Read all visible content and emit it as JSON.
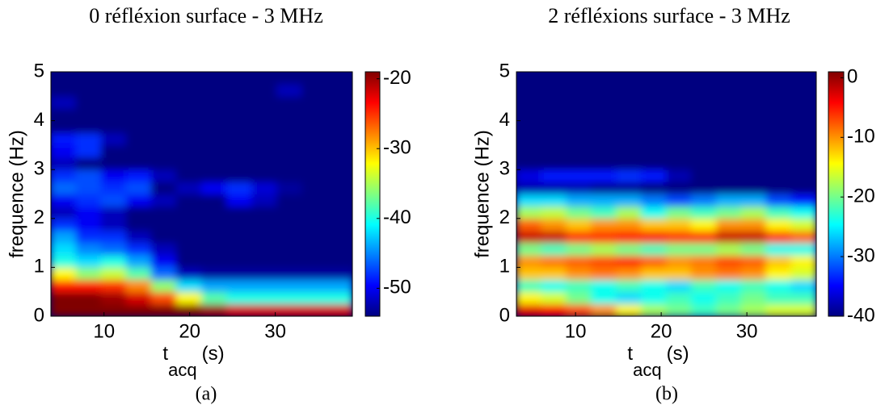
{
  "chart_data": [
    {
      "type": "heatmap",
      "title": "0 réfléxion surface - 3 MHz",
      "caption": "(a)",
      "ylabel": "frequence (Hz)",
      "xlabel": "t",
      "xlabel_sub": "acq",
      "xlabel_unit": "(s)",
      "xlim": [
        3.8,
        39
      ],
      "xticks": [
        10,
        20,
        30
      ],
      "ylim": [
        0,
        5
      ],
      "yticks": [
        0,
        1,
        2,
        3,
        4,
        5
      ],
      "clim": [
        -54,
        -19
      ],
      "cticks": [
        -50,
        -40,
        -30,
        -20
      ],
      "colormap": "jet",
      "x": [
        5.27,
        8.2,
        11.13,
        14.07,
        17,
        19.93,
        22.87,
        25.8,
        28.73,
        31.67,
        34.6,
        37.53
      ],
      "y": [
        0.125,
        0.375,
        0.625,
        0.875,
        1.125,
        1.375,
        1.625,
        1.875,
        2.125,
        2.375,
        2.625,
        2.875,
        3.125,
        3.375,
        3.625,
        3.875,
        4.125,
        4.375,
        4.625,
        4.875
      ],
      "z": [
        [
          -19,
          -19,
          -19,
          -19,
          -19,
          -19,
          -20,
          -22,
          -22,
          -22,
          -22,
          -22
        ],
        [
          -19,
          -19,
          -20,
          -22,
          -26,
          -32,
          -38,
          -40,
          -40,
          -40,
          -40,
          -40
        ],
        [
          -24,
          -24,
          -25,
          -28,
          -36,
          -42,
          -44,
          -44,
          -44,
          -44,
          -44,
          -44
        ],
        [
          -32,
          -36,
          -34,
          -38,
          -46,
          -52,
          -53,
          -53,
          -53,
          -53,
          -53,
          -53
        ],
        [
          -40,
          -42,
          -40,
          -44,
          -50,
          -54,
          -54,
          -54,
          -54,
          -54,
          -54,
          -54
        ],
        [
          -42,
          -45,
          -46,
          -48,
          -52,
          -54,
          -54,
          -54,
          -54,
          -54,
          -54,
          -54
        ],
        [
          -44,
          -48,
          -48,
          -52,
          -54,
          -54,
          -54,
          -54,
          -54,
          -54,
          -54,
          -54
        ],
        [
          -48,
          -50,
          -52,
          -54,
          -54,
          -54,
          -54,
          -54,
          -54,
          -54,
          -54,
          -54
        ],
        [
          -52,
          -50,
          -52,
          -54,
          -54,
          -54,
          -54,
          -54,
          -54,
          -54,
          -54,
          -54
        ],
        [
          -50,
          -48,
          -47,
          -50,
          -52,
          -54,
          -54,
          -50,
          -52,
          -54,
          -54,
          -54
        ],
        [
          -46,
          -47,
          -48,
          -47,
          -54,
          -52,
          -50,
          -48,
          -51,
          -53,
          -54,
          -54
        ],
        [
          -48,
          -47,
          -50,
          -49,
          -52,
          -54,
          -54,
          -54,
          -54,
          -54,
          -54,
          -54
        ],
        [
          -52,
          -54,
          -54,
          -54,
          -54,
          -54,
          -54,
          -54,
          -54,
          -54,
          -54,
          -54
        ],
        [
          -50,
          -48,
          -54,
          -54,
          -54,
          -54,
          -54,
          -54,
          -54,
          -54,
          -54,
          -54
        ],
        [
          -49,
          -48,
          -52,
          -54,
          -54,
          -54,
          -54,
          -54,
          -54,
          -54,
          -54,
          -54
        ],
        [
          -54,
          -54,
          -54,
          -54,
          -54,
          -54,
          -54,
          -54,
          -54,
          -54,
          -54,
          -54
        ],
        [
          -54,
          -54,
          -54,
          -54,
          -54,
          -54,
          -54,
          -54,
          -54,
          -54,
          -54,
          -54
        ],
        [
          -52,
          -54,
          -54,
          -54,
          -54,
          -54,
          -54,
          -54,
          -54,
          -54,
          -54,
          -54
        ],
        [
          -54,
          -54,
          -54,
          -54,
          -54,
          -54,
          -54,
          -54,
          -54,
          -52,
          -54,
          -54
        ],
        [
          -54,
          -54,
          -54,
          -54,
          -54,
          -54,
          -54,
          -54,
          -54,
          -54,
          -54,
          -54
        ]
      ]
    },
    {
      "type": "heatmap",
      "title": "2 réfléxions surface - 3 MHz",
      "caption": "(b)",
      "ylabel": "frequence (Hz)",
      "xlabel": "t",
      "xlabel_sub": "acq",
      "xlabel_unit": "(s)",
      "xlim": [
        3.1,
        38.1
      ],
      "xticks": [
        10,
        20,
        30
      ],
      "ylim": [
        0,
        5
      ],
      "yticks": [
        0,
        1,
        2,
        3,
        4,
        5
      ],
      "clim": [
        -40,
        1
      ],
      "cticks": [
        -40,
        -30,
        -20,
        -10,
        0
      ],
      "colormap": "jet",
      "x": [
        4.56,
        7.48,
        10.4,
        13.31,
        16.23,
        19.15,
        22.06,
        24.98,
        27.9,
        30.81,
        33.73,
        36.65
      ],
      "y": [
        0.125,
        0.375,
        0.625,
        0.875,
        1.125,
        1.375,
        1.625,
        1.875,
        2.125,
        2.375,
        2.625,
        2.875,
        3.125,
        3.375,
        3.625,
        3.875,
        4.125,
        4.375,
        4.625,
        4.875
      ],
      "z": [
        [
          -3,
          -4,
          -7,
          -10,
          -14,
          -18,
          -20,
          -22,
          -20,
          -18,
          -16,
          -16
        ],
        [
          -14,
          -16,
          -20,
          -24,
          -26,
          -24,
          -22,
          -24,
          -22,
          -20,
          -22,
          -22
        ],
        [
          -22,
          -24,
          -22,
          -24,
          -22,
          -24,
          -26,
          -22,
          -24,
          -22,
          -24,
          -26
        ],
        [
          -12,
          -12,
          -10,
          -9,
          -10,
          -12,
          -12,
          -10,
          -9,
          -10,
          -14,
          -16
        ],
        [
          -10,
          -9,
          -8,
          -7,
          -6,
          -8,
          -10,
          -9,
          -7,
          -8,
          -12,
          -14
        ],
        [
          -20,
          -22,
          -20,
          -18,
          -20,
          -22,
          -20,
          -20,
          -18,
          -20,
          -24,
          -24
        ],
        [
          -2,
          -2,
          -6,
          -6,
          -5,
          -4,
          -6,
          -6,
          -2,
          -2,
          -6,
          -8
        ],
        [
          -8,
          -10,
          -12,
          -10,
          -10,
          -12,
          -12,
          -14,
          -10,
          -10,
          -14,
          -16
        ],
        [
          -18,
          -17,
          -20,
          -22,
          -18,
          -24,
          -20,
          -22,
          -20,
          -18,
          -22,
          -24
        ],
        [
          -26,
          -26,
          -28,
          -28,
          -28,
          -30,
          -32,
          -30,
          -28,
          -28,
          -32,
          -34
        ],
        [
          -38,
          -38,
          -38,
          -39,
          -39,
          -40,
          -40,
          -40,
          -40,
          -40,
          -40,
          -40
        ],
        [
          -36,
          -34,
          -34,
          -34,
          -33,
          -34,
          -38,
          -40,
          -40,
          -40,
          -40,
          -40
        ],
        [
          -40,
          -40,
          -40,
          -40,
          -40,
          -40,
          -40,
          -40,
          -40,
          -40,
          -40,
          -40
        ],
        [
          -40,
          -40,
          -40,
          -40,
          -40,
          -40,
          -40,
          -40,
          -40,
          -40,
          -40,
          -40
        ],
        [
          -40,
          -40,
          -40,
          -40,
          -40,
          -40,
          -40,
          -40,
          -40,
          -40,
          -40,
          -40
        ],
        [
          -40,
          -40,
          -40,
          -40,
          -40,
          -40,
          -40,
          -40,
          -40,
          -40,
          -40,
          -40
        ],
        [
          -40,
          -40,
          -40,
          -40,
          -40,
          -40,
          -40,
          -40,
          -40,
          -40,
          -40,
          -40
        ],
        [
          -40,
          -40,
          -40,
          -40,
          -40,
          -40,
          -40,
          -40,
          -40,
          -40,
          -40,
          -40
        ],
        [
          -40,
          -40,
          -40,
          -40,
          -40,
          -40,
          -40,
          -40,
          -40,
          -40,
          -40,
          -40
        ],
        [
          -40,
          -40,
          -40,
          -40,
          -40,
          -40,
          -40,
          -40,
          -40,
          -40,
          -40,
          -40
        ]
      ]
    }
  ]
}
